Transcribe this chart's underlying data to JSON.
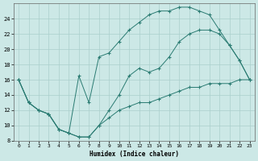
{
  "line1_x": [
    0,
    1,
    2,
    3,
    4,
    5,
    6,
    7,
    8,
    9,
    10,
    11,
    12,
    13,
    14,
    15,
    16,
    17,
    18,
    19,
    20,
    21,
    22,
    23
  ],
  "line1_y": [
    16,
    13,
    12,
    11.5,
    9.5,
    9,
    8.5,
    8.5,
    10,
    11,
    12,
    12.5,
    13,
    13,
    13.5,
    14,
    14.5,
    15,
    15,
    15.5,
    15.5,
    15.5,
    16,
    16
  ],
  "line2_x": [
    0,
    1,
    2,
    3,
    4,
    5,
    6,
    7,
    8,
    9,
    10,
    11,
    12,
    13,
    14,
    15,
    16,
    17,
    18,
    19,
    20,
    21,
    22,
    23
  ],
  "line2_y": [
    16,
    13,
    12,
    11.5,
    9.5,
    9,
    8.5,
    8.5,
    10,
    12,
    14,
    16.5,
    17.5,
    17,
    17.5,
    19,
    21,
    22,
    22.5,
    22.5,
    22,
    20.5,
    18.5,
    16
  ],
  "line3_x": [
    0,
    1,
    2,
    3,
    4,
    5,
    6,
    7,
    8,
    9,
    10,
    11,
    12,
    13,
    14,
    15,
    16,
    17,
    18,
    19,
    20,
    21,
    22,
    23
  ],
  "line3_y": [
    16,
    13,
    12,
    11.5,
    9.5,
    9,
    16.5,
    13,
    19,
    19.5,
    21,
    22.5,
    23.5,
    24.5,
    25,
    25,
    25.5,
    25.5,
    25,
    24.5,
    22.5,
    20.5,
    18.5,
    16
  ],
  "bg_color": "#cce8e6",
  "line_color": "#2a7b72",
  "grid_color": "#aacfcc",
  "xlabel": "Humidex (Indice chaleur)",
  "xlim": [
    -0.5,
    23.5
  ],
  "ylim": [
    8,
    26
  ],
  "yticks": [
    8,
    10,
    12,
    14,
    16,
    18,
    20,
    22,
    24
  ],
  "xticks": [
    0,
    1,
    2,
    3,
    4,
    5,
    6,
    7,
    8,
    9,
    10,
    11,
    12,
    13,
    14,
    15,
    16,
    17,
    18,
    19,
    20,
    21,
    22,
    23
  ]
}
